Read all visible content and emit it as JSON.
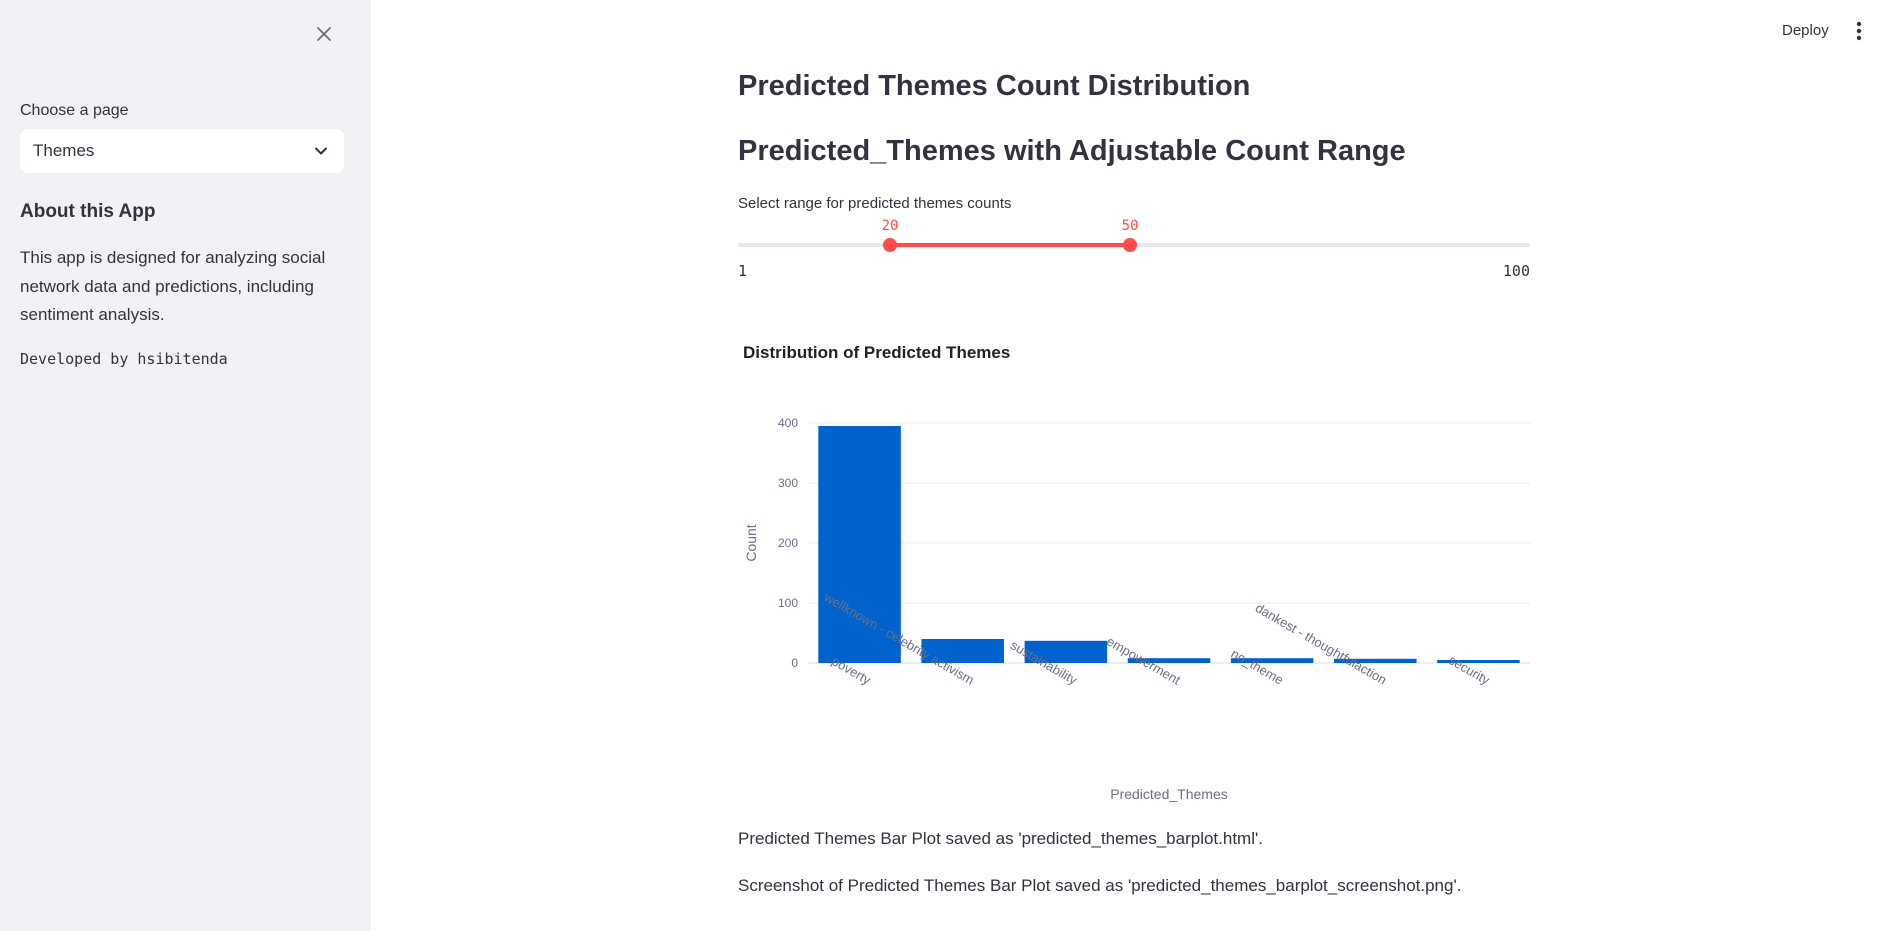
{
  "sidebar": {
    "choose_label": "Choose a page",
    "select_value": "Themes",
    "about_title": "About this App",
    "about_text": "This app is designed for analyzing social network data and predictions, including sentiment analysis.",
    "developer": "Developed by hsibitenda"
  },
  "header": {
    "deploy_label": "Deploy"
  },
  "main": {
    "title": "Predicted Themes Count Distribution",
    "subtitle": "Predicted_Themes with Adjustable Count Range",
    "slider": {
      "label": "Select range for predicted themes counts",
      "min": 1,
      "max": 100,
      "low": 20,
      "high": 50,
      "min_label": "1",
      "max_label": "100",
      "low_label": "20",
      "high_label": "50"
    },
    "message_1": "Predicted Themes Bar Plot saved as 'predicted_themes_barplot.html'.",
    "message_2": "Screenshot of Predicted Themes Bar Plot saved as 'predicted_themes_barplot_screenshot.png'."
  },
  "colors": {
    "accent": "#ff4b4b",
    "bar": "#0062cc",
    "sidebar_bg": "#f0f2f6"
  },
  "chart_data": {
    "type": "bar",
    "title": "Distribution of Predicted Themes",
    "xlabel": "Predicted_Themes",
    "ylabel": "Count",
    "categories": [
      "poverty",
      "wellknown - celebrity activism",
      "sustainability",
      "empowerment",
      "no_theme",
      "dankest - thoughtfulaction",
      "security"
    ],
    "values": [
      395,
      40,
      37,
      8,
      8,
      7,
      5
    ],
    "ylim": [
      0,
      400
    ],
    "yticks": [
      0,
      100,
      200,
      300,
      400
    ],
    "grid": true
  }
}
